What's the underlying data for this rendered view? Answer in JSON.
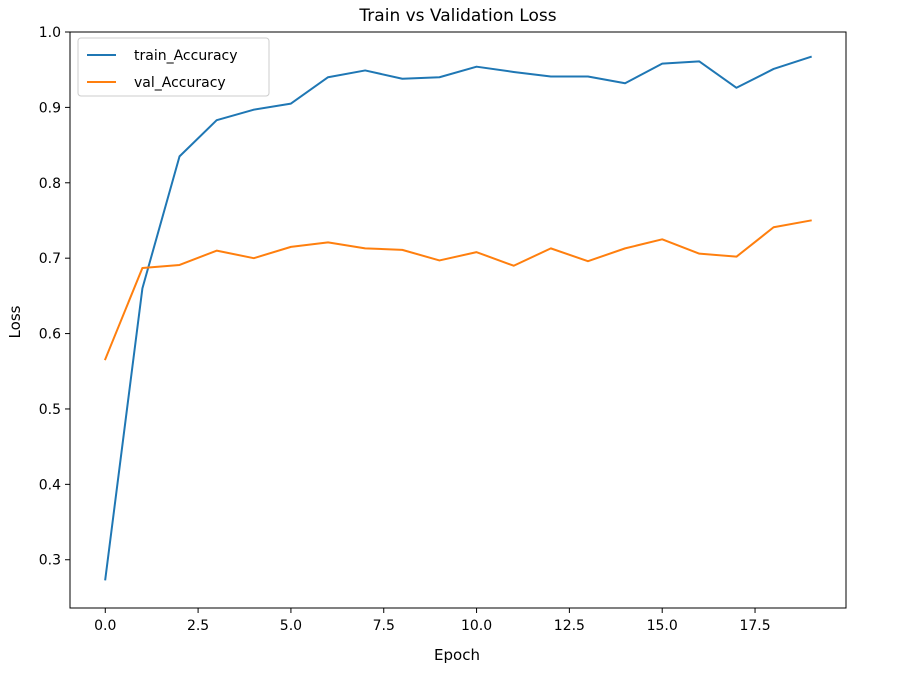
{
  "chart_data": {
    "type": "line",
    "title": "Train vs Validation Loss",
    "xlabel": "Epoch",
    "ylabel": "Loss",
    "xlim": [
      -0.95,
      19.95
    ],
    "ylim": [
      0.236,
      1.0
    ],
    "xticks": [
      0.0,
      2.5,
      5.0,
      7.5,
      10.0,
      12.5,
      15.0,
      17.5
    ],
    "xtick_labels": [
      "0.0",
      "2.5",
      "5.0",
      "7.5",
      "10.0",
      "12.5",
      "15.0",
      "17.5"
    ],
    "yticks": [
      0.3,
      0.4,
      0.5,
      0.6,
      0.7,
      0.8,
      0.9,
      1.0
    ],
    "ytick_labels": [
      "0.3",
      "0.4",
      "0.5",
      "0.6",
      "0.7",
      "0.8",
      "0.9",
      "1.0"
    ],
    "grid": false,
    "legend_position": "top-left",
    "x": [
      0,
      1,
      2,
      3,
      4,
      5,
      6,
      7,
      8,
      9,
      10,
      11,
      12,
      13,
      14,
      15,
      16,
      17,
      18,
      19
    ],
    "series": [
      {
        "name": "train_Accuracy",
        "color": "#1f77b4",
        "values": [
          0.274,
          0.66,
          0.835,
          0.883,
          0.897,
          0.905,
          0.94,
          0.949,
          0.938,
          0.94,
          0.954,
          0.947,
          0.941,
          0.941,
          0.932,
          0.958,
          0.961,
          0.926,
          0.951,
          0.967
        ]
      },
      {
        "name": "val_Accuracy",
        "color": "#ff7f0e",
        "values": [
          0.566,
          0.687,
          0.691,
          0.71,
          0.7,
          0.715,
          0.721,
          0.713,
          0.711,
          0.697,
          0.708,
          0.69,
          0.713,
          0.696,
          0.713,
          0.725,
          0.706,
          0.702,
          0.741,
          0.75
        ]
      }
    ]
  }
}
